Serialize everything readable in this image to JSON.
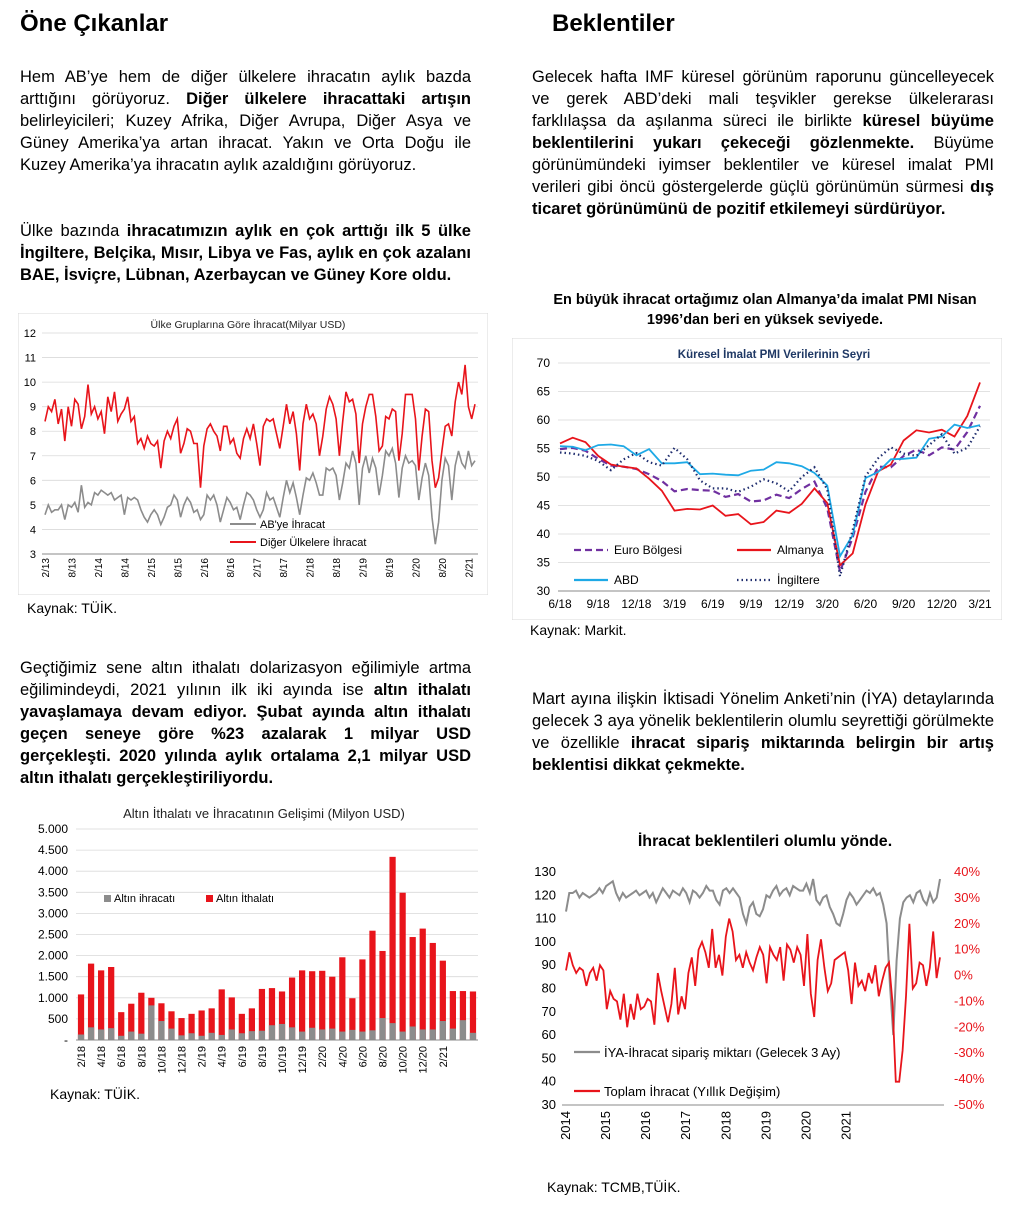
{
  "left": {
    "heading": "Öne Çıkanlar",
    "para1": [
      {
        "t": "Hem AB’ye hem de diğer ülkelere ihracatın aylık bazda arttığını görüyoruz. ",
        "b": false
      },
      {
        "t": "Diğer ülkelere ihracattaki artışın",
        "b": true
      },
      {
        "t": " belirleyicileri; Kuzey Afrika, Diğer Avrupa, Diğer Asya ve Güney Amerika’ya artan ihracat. Yakın ve Orta Doğu ile Kuzey Amerika’ya ihracatın aylık azaldığını görüyoruz.",
        "b": false
      }
    ],
    "para2": [
      {
        "t": "Ülke bazında ",
        "b": false
      },
      {
        "t": "ihracatımızın aylık en çok arttığı ilk 5 ülke İngiltere, Belçika, Mısır, Libya ve Fas, aylık en çok azalanı BAE, İsviçre, Lübnan, Azerbaycan ve Güney Kore oldu.",
        "b": true
      }
    ],
    "source1": "Kaynak: TÜİK.",
    "para3": [
      {
        "t": "Geçtiğimiz sene altın ithalatı dolarizasyon eğilimiyle artma eğilimindeydi, 2021 yılının ilk iki ayında ise ",
        "b": false
      },
      {
        "t": "altın ithalatı yavaşlamaya devam ediyor. Şubat ayında altın ithalatı geçen seneye göre %23 azalarak 1 milyar USD gerçekleşti. 2020 yılında aylık ortalama 2,1 milyar USD altın ithalatı gerçekleştiriliyordu.",
        "b": true
      }
    ],
    "source2": "Kaynak: TÜİK."
  },
  "right": {
    "heading": "Beklentiler",
    "para1": [
      {
        "t": "Gelecek hafta IMF küresel görünüm raporunu güncelleyecek ve gerek ABD’deki mali teşvikler gerekse ülkelerarası farklılaşsa da aşılanma süreci ile birlikte ",
        "b": false
      },
      {
        "t": "küresel büyüme beklentilerini yukarı çekeceği gözlenmekte.",
        "b": true
      },
      {
        "t": " Büyüme görünümündeki iyimser beklentiler ve küresel imalat PMI verileri gibi öncü göstergelerde güçlü görünümün sürmesi ",
        "b": false
      },
      {
        "t": "dış ticaret görünümünü de pozitif etkilemeyi sürdürüyor.",
        "b": true
      }
    ],
    "chart2_caption": "En büyük ihracat ortağımız olan Almanya’da imalat PMI Nisan 1996’dan beri en yüksek seviyede.",
    "source3": "Kaynak: Markit.",
    "para2": [
      {
        "t": "Mart ayına ilişkin İktisadi Yönelim Anketi’nin (İYA) detaylarında gelecek 3 aya yönelik beklentilerin olumlu seyrettiği görülmekte ve özellikle ",
        "b": false
      },
      {
        "t": "ihracat sipariş miktarında belirgin bir artış beklentisi dikkat çekmekte.",
        "b": true
      }
    ],
    "chart4_caption": "İhracat beklentileri olumlu yönde.",
    "source4": "Kaynak: TCMB,TÜİK."
  },
  "colors": {
    "red": "#e8141b",
    "gray": "#8c8c8c",
    "purple": "#7030a0",
    "blue": "#1ea9e6",
    "navy": "#1f2d6e"
  },
  "chart_data": [
    {
      "type": "line",
      "title": "Ülke Gruplarına Göre İhracat(Milyar USD)",
      "ylim": [
        3,
        12
      ],
      "yticks": [
        3,
        4,
        5,
        6,
        7,
        8,
        9,
        10,
        11,
        12
      ],
      "xticks": [
        "2/13",
        "8/13",
        "2/14",
        "8/14",
        "2/15",
        "8/15",
        "2/16",
        "8/16",
        "2/17",
        "8/17",
        "2/18",
        "8/18",
        "2/19",
        "8/19",
        "2/20",
        "8/20",
        "2/21"
      ],
      "legend": "bottom-center",
      "series": [
        {
          "name": "AB'ye İhracat",
          "color": "#8c8c8c",
          "values": [
            4.6,
            5.0,
            4.7,
            4.8,
            4.8,
            5.0,
            4.4,
            5.0,
            4.9,
            5.1,
            4.7,
            5.8,
            4.9,
            5.1,
            5.0,
            5.5,
            5.4,
            5.6,
            5.5,
            5.4,
            5.5,
            5.2,
            5.3,
            5.4,
            4.6,
            5.3,
            5.2,
            5.3,
            5.2,
            4.8,
            4.5,
            4.3,
            4.6,
            4.8,
            4.6,
            4.2,
            4.5,
            4.9,
            5.0,
            5.4,
            5.2,
            4.5,
            5.0,
            5.3,
            5.1,
            4.7,
            4.8,
            4.4,
            4.6,
            5.4,
            5.2,
            5.4,
            5.0,
            4.3,
            4.8,
            5.3,
            5.1,
            4.8,
            4.9,
            4.4,
            5.0,
            5.5,
            5.4,
            5.2,
            4.8,
            4.5,
            4.8,
            5.5,
            5.2,
            5.3,
            4.9,
            4.5,
            5.3,
            6.0,
            5.5,
            5.9,
            5.3,
            4.6,
            5.4,
            6.1,
            6.0,
            6.3,
            5.9,
            5.4,
            5.4,
            6.5,
            6.4,
            6.5,
            6.2,
            5.2,
            5.9,
            6.7,
            6.5,
            7.2,
            6.7,
            5.0,
            6.5,
            7.0,
            6.3,
            6.9,
            6.5,
            5.4,
            6.2,
            7.2,
            7.0,
            7.3,
            6.7,
            5.3,
            6.5,
            7.0,
            6.7,
            6.8,
            6.6,
            5.2,
            6.1,
            6.7,
            6.2,
            4.5,
            3.4,
            4.3,
            6.0,
            6.9,
            6.6,
            5.2,
            6.6,
            7.2,
            6.7,
            6.5,
            7.2,
            6.6,
            6.8
          ]
        },
        {
          "name": "Diğer Ülkelere İhracat",
          "color": "#e8141b",
          "values": [
            8.4,
            9.0,
            8.8,
            9.3,
            8.3,
            8.9,
            7.6,
            9.0,
            8.2,
            9.3,
            9.1,
            8.1,
            8.6,
            9.9,
            8.7,
            9.0,
            8.5,
            8.8,
            7.9,
            9.4,
            8.8,
            9.6,
            8.4,
            8.7,
            8.9,
            9.4,
            8.4,
            8.6,
            7.5,
            7.7,
            7.3,
            7.8,
            7.5,
            7.4,
            7.6,
            6.5,
            7.6,
            8.0,
            7.7,
            8.2,
            8.5,
            7.1,
            7.5,
            8.1,
            8.0,
            7.5,
            7.5,
            5.7,
            7.4,
            8.1,
            8.3,
            8.0,
            7.8,
            7.2,
            8.2,
            8.2,
            7.5,
            7.7,
            7.1,
            6.9,
            7.7,
            8.1,
            7.7,
            8.3,
            7.5,
            6.6,
            8.2,
            8.5,
            8.4,
            8.5,
            7.9,
            7.3,
            8.2,
            9.1,
            8.3,
            8.8,
            7.9,
            6.4,
            8.3,
            9.1,
            8.5,
            8.7,
            8.3,
            7.0,
            7.8,
            8.9,
            9.4,
            9.1,
            8.5,
            7.0,
            8.4,
            9.6,
            9.2,
            9.3,
            8.7,
            6.7,
            8.3,
            9.0,
            9.5,
            9.5,
            8.6,
            7.2,
            7.4,
            8.6,
            8.5,
            8.9,
            8.8,
            6.8,
            7.9,
            9.5,
            9.5,
            9.5,
            8.5,
            6.4,
            7.8,
            8.9,
            8.8,
            6.8,
            5.7,
            6.1,
            7.2,
            8.2,
            8.3,
            7.8,
            9.2,
            10.0,
            9.5,
            10.7,
            9.0,
            8.5,
            9.1
          ]
        }
      ]
    },
    {
      "type": "line",
      "title": "Küresel İmalat PMI Verilerinin Seyri",
      "ylim": [
        30,
        70
      ],
      "yticks": [
        30,
        35,
        40,
        45,
        50,
        55,
        60,
        65,
        70
      ],
      "xticks": [
        "6/18",
        "9/18",
        "12/18",
        "3/19",
        "6/19",
        "9/19",
        "12/19",
        "3/20",
        "6/20",
        "9/20",
        "12/20",
        "3/21"
      ],
      "legend": "bottom",
      "series": [
        {
          "name": "Euro Bölgesi",
          "color": "#7030a0",
          "dash": "dash",
          "values": [
            54.9,
            55.1,
            54.6,
            53.2,
            52.0,
            51.8,
            51.4,
            50.5,
            49.3,
            47.5,
            47.9,
            47.7,
            47.6,
            46.5,
            47.0,
            45.7,
            45.9,
            46.9,
            46.3,
            47.9,
            49.2,
            44.5,
            33.4,
            39.4,
            47.4,
            51.8,
            51.7,
            53.7,
            54.8,
            53.8,
            55.2,
            54.8,
            57.9,
            62.5
          ]
        },
        {
          "name": "Almanya",
          "color": "#e8141b",
          "dash": "solid",
          "values": [
            55.9,
            56.9,
            56.1,
            53.7,
            52.2,
            51.8,
            51.5,
            49.7,
            47.6,
            44.1,
            44.4,
            44.3,
            45.0,
            43.2,
            43.5,
            41.7,
            42.1,
            44.1,
            43.7,
            45.3,
            48.0,
            45.4,
            34.5,
            36.6,
            45.2,
            51.0,
            52.2,
            56.4,
            58.2,
            57.8,
            58.3,
            57.1,
            60.7,
            66.6
          ]
        },
        {
          "name": "ABD",
          "color": "#1ea9e6",
          "dash": "solid",
          "values": [
            55.4,
            55.3,
            54.7,
            55.6,
            55.7,
            55.4,
            53.8,
            54.9,
            52.4,
            52.4,
            52.6,
            50.5,
            50.6,
            50.4,
            50.3,
            51.1,
            51.3,
            52.6,
            52.4,
            51.9,
            50.7,
            48.5,
            36.1,
            39.8,
            49.8,
            50.9,
            53.1,
            53.2,
            53.4,
            56.7,
            57.1,
            59.2,
            58.6,
            59.1
          ]
        },
        {
          "name": "İngiltere",
          "color": "#1f2d6e",
          "dash": "dot",
          "values": [
            54.3,
            54.1,
            53.7,
            52.8,
            51.2,
            53.1,
            54.2,
            52.6,
            52.0,
            55.1,
            53.1,
            49.4,
            48.0,
            48.0,
            47.4,
            48.3,
            49.6,
            48.9,
            47.5,
            50.0,
            51.7,
            47.8,
            32.6,
            40.7,
            50.1,
            53.3,
            55.2,
            54.1,
            53.7,
            55.6,
            57.5,
            54.1,
            55.1,
            58.9
          ]
        }
      ]
    },
    {
      "type": "bar",
      "title": "Altın İthalatı ve İhracatının Gelişimi (Milyon USD)",
      "ylim": [
        0,
        5000
      ],
      "yticks": [
        "-",
        "500",
        "1.000",
        "1.500",
        "2.000",
        "2.500",
        "3.000",
        "3.500",
        "4.000",
        "4.500",
        "5.000"
      ],
      "xticks": [
        "2/18",
        "4/18",
        "6/18",
        "8/18",
        "10/18",
        "12/18",
        "2/19",
        "4/19",
        "6/19",
        "8/19",
        "10/19",
        "12/19",
        "2/20",
        "4/20",
        "6/20",
        "8/20",
        "10/20",
        "12/20",
        "2/21"
      ],
      "legend": "top-left",
      "series": [
        {
          "name": "Altın ihracatı",
          "color": "#8c8c8c",
          "values": [
            130,
            300,
            250,
            280,
            100,
            200,
            150,
            820,
            450,
            270,
            110,
            160,
            100,
            170,
            120,
            250,
            160,
            210,
            220,
            350,
            380,
            300,
            200,
            290,
            250,
            270,
            200,
            240,
            200,
            230,
            520,
            400,
            200,
            320,
            250,
            250,
            450,
            270,
            470,
            170
          ]
        },
        {
          "name": "Altın İthalatı",
          "color": "#e8141b",
          "values": [
            1080,
            1810,
            1650,
            1730,
            660,
            860,
            1120,
            1000,
            870,
            680,
            520,
            620,
            700,
            750,
            1200,
            1010,
            620,
            750,
            1210,
            1230,
            1150,
            1480,
            1650,
            1630,
            1640,
            1500,
            1960,
            990,
            1910,
            2590,
            2110,
            4340,
            3490,
            2440,
            2640,
            2300,
            1880,
            1160,
            1160,
            1150
          ]
        }
      ]
    },
    {
      "type": "line",
      "title": "",
      "ylim": [
        30,
        130
      ],
      "ylim_right": [
        -50,
        40
      ],
      "yticks": [
        30,
        40,
        50,
        60,
        70,
        80,
        90,
        100,
        110,
        120,
        130
      ],
      "yticks_right": [
        "-50%",
        "-40%",
        "-30%",
        "-20%",
        "-10%",
        "0%",
        "10%",
        "20%",
        "30%",
        "40%"
      ],
      "xticks": [
        "2014",
        "2015",
        "2016",
        "2017",
        "2018",
        "2019",
        "2020",
        "2021"
      ],
      "legend": "bottom-left",
      "series": [
        {
          "name": "İYA-İhracat sipariş miktarı (Gelecek 3 Ay)",
          "color": "#8c8c8c",
          "axis": "left",
          "values": [
            113,
            121,
            121,
            122,
            119,
            121,
            120,
            119,
            120,
            121,
            123,
            121,
            124,
            125,
            126,
            121,
            118,
            121,
            119,
            120,
            121,
            122,
            120,
            121,
            122,
            119,
            121,
            117,
            120,
            123,
            121,
            119,
            122,
            121,
            120,
            123,
            121,
            117,
            122,
            121,
            119,
            121,
            124,
            122,
            122,
            118,
            116,
            122,
            123,
            121,
            123,
            121,
            119,
            112,
            108,
            115,
            117,
            112,
            111,
            114,
            120,
            119,
            122,
            124,
            120,
            122,
            123,
            120,
            124,
            123,
            122,
            122,
            125,
            121,
            127,
            118,
            116,
            119,
            120,
            115,
            112,
            108,
            107,
            112,
            118,
            121,
            119,
            116,
            118,
            120,
            122,
            121,
            123,
            120,
            121,
            116,
            108,
            82,
            60,
            92,
            110,
            117,
            119,
            120,
            117,
            121,
            122,
            118,
            116,
            121,
            117,
            119,
            127
          ]
        },
        {
          "name": "Toplam İhracat (Yıllık Değişim)",
          "color": "#e8141b",
          "axis": "right",
          "values": [
            2,
            9,
            4,
            1,
            3,
            2,
            -4,
            1,
            3,
            -2,
            4,
            2,
            -13,
            -6,
            -9,
            -10,
            -17,
            -7,
            -20,
            -11,
            -17,
            -7,
            -13,
            -12,
            -9,
            -10,
            -19,
            1,
            -6,
            -12,
            -18,
            -11,
            3,
            -15,
            -8,
            -13,
            1,
            7,
            -4,
            10,
            13,
            9,
            3,
            18,
            3,
            8,
            0,
            15,
            22,
            17,
            6,
            8,
            3,
            9,
            5,
            2,
            7,
            11,
            8,
            -3,
            11,
            8,
            6,
            11,
            -2,
            12,
            10,
            5,
            11,
            8,
            -4,
            16,
            -7,
            -16,
            6,
            14,
            3,
            -6,
            -3,
            6,
            7,
            8,
            9,
            2,
            -11,
            5,
            -4,
            -2,
            -6,
            1,
            -3,
            4,
            -8,
            -2,
            3,
            5,
            -10,
            -41,
            -41,
            -29,
            -8,
            20,
            -5,
            -3,
            5,
            4,
            -4,
            3,
            17,
            -1,
            7
          ]
        }
      ]
    }
  ]
}
